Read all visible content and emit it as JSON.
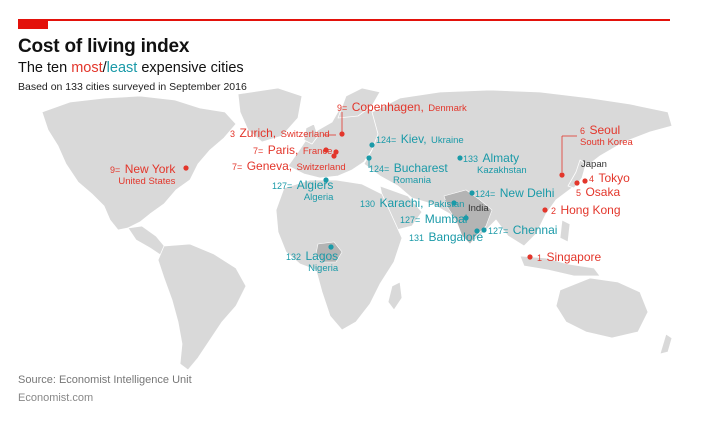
{
  "header": {
    "title": "Cost of living index",
    "subtitle_pre": "The ten ",
    "subtitle_most": "most",
    "subtitle_sep": "/",
    "subtitle_least": "least",
    "subtitle_post": " expensive cities",
    "note": "Based on 133 cities surveyed in September 2016"
  },
  "colors": {
    "expensive": "#e3362b",
    "cheap": "#1a9aa8",
    "land": "#d9d9d9",
    "highlight": "#b4b4b4",
    "accent": "#e3120b"
  },
  "cities": {
    "copenhagen": {
      "rank": "9=",
      "name": "Copenhagen,",
      "country": "Denmark",
      "group": "most"
    },
    "zurich": {
      "rank": "3",
      "name": "Zurich,",
      "country": "Switzerland",
      "group": "most"
    },
    "paris": {
      "rank": "7=",
      "name": "Paris,",
      "country": "France",
      "group": "most"
    },
    "geneva": {
      "rank": "7=",
      "name": "Geneva,",
      "country": "Switzerland",
      "group": "most"
    },
    "newyork": {
      "rank": "9=",
      "name": "New York",
      "country": "United States",
      "group": "most"
    },
    "seoul": {
      "rank": "6",
      "name": "Seoul",
      "country": "South Korea",
      "group": "most"
    },
    "tokyo": {
      "rank": "4",
      "name": "Tokyo",
      "group": "most"
    },
    "osaka": {
      "rank": "5",
      "name": "Osaka",
      "group": "most"
    },
    "hongkong": {
      "rank": "2",
      "name": "Hong Kong",
      "group": "most"
    },
    "singapore": {
      "rank": "1",
      "name": "Singapore",
      "group": "most"
    },
    "kiev": {
      "rank": "124=",
      "name": "Kiev,",
      "country": "Ukraine",
      "group": "least"
    },
    "bucharest": {
      "rank": "124=",
      "name": "Bucharest",
      "country": "Romania",
      "group": "least"
    },
    "almaty": {
      "rank": "133",
      "name": "Almaty",
      "country": "Kazakhstan",
      "group": "least"
    },
    "algiers": {
      "rank": "127=",
      "name": "Algiers",
      "country": "Algeria",
      "group": "least"
    },
    "newdelhi": {
      "rank": "124=",
      "name": "New Delhi",
      "group": "least"
    },
    "karachi": {
      "rank": "130",
      "name": "Karachi,",
      "country": "Pakistan",
      "group": "least"
    },
    "mumbai": {
      "rank": "127=",
      "name": "Mumbai",
      "group": "least"
    },
    "chennai": {
      "rank": "127=",
      "name": "Chennai",
      "group": "least"
    },
    "bangalore": {
      "rank": "131",
      "name": "Bangalore",
      "group": "least"
    },
    "lagos": {
      "rank": "132",
      "name": "Lagos",
      "country": "Nigeria",
      "group": "least"
    }
  },
  "country_labels": {
    "japan": "Japan",
    "india": "India"
  },
  "footer": {
    "source": "Source: Economist Intelligence Unit",
    "brand": "Economist.com"
  }
}
